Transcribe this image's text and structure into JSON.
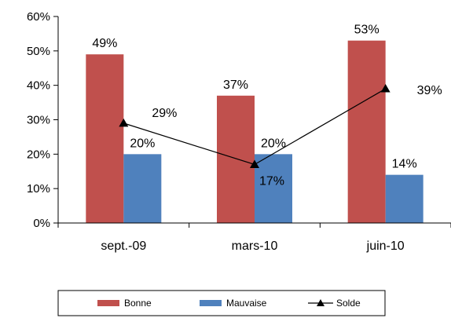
{
  "chart_data": {
    "type": "bar",
    "categories": [
      "sept.-09",
      "mars-10",
      "juin-10"
    ],
    "series": [
      {
        "name": "Bonne",
        "kind": "bar",
        "color": "#C0504D",
        "values": [
          49,
          37,
          53
        ],
        "labels": [
          "49%",
          "37%",
          "53%"
        ]
      },
      {
        "name": "Mauvaise",
        "kind": "bar",
        "color": "#4F81BD",
        "values": [
          20,
          20,
          14
        ],
        "labels": [
          "20%",
          "20%",
          "14%"
        ]
      },
      {
        "name": "Solde",
        "kind": "line",
        "color": "#000000",
        "marker": "triangle",
        "values": [
          29,
          17,
          39
        ],
        "labels": [
          "29%",
          "17%",
          "39%"
        ]
      }
    ],
    "ylim": [
      0,
      60
    ],
    "yticks": [
      0,
      10,
      20,
      30,
      40,
      50,
      60
    ],
    "ytick_labels": [
      "0%",
      "10%",
      "20%",
      "30%",
      "40%",
      "50%",
      "60%"
    ],
    "grid": false,
    "legend_position": "bottom"
  }
}
